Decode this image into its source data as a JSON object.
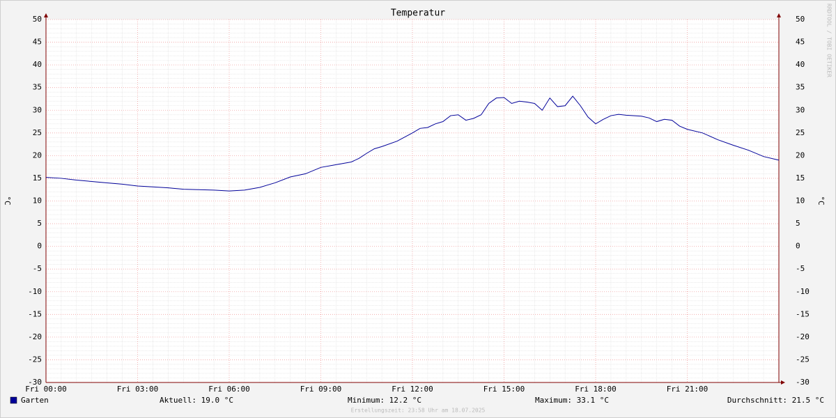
{
  "chart_data": {
    "type": "line",
    "title": "Temperatur",
    "y_label": "°C",
    "x": [
      0,
      0.5,
      1,
      1.5,
      2,
      2.5,
      3,
      3.5,
      4,
      4.5,
      5,
      5.5,
      6,
      6.5,
      7,
      7.5,
      8,
      8.5,
      9,
      9.5,
      10,
      10.25,
      10.5,
      10.75,
      11,
      11.5,
      12,
      12.25,
      12.5,
      12.75,
      13,
      13.25,
      13.5,
      13.75,
      14,
      14.25,
      14.5,
      14.75,
      15,
      15.25,
      15.5,
      15.75,
      16,
      16.25,
      16.5,
      16.75,
      17,
      17.25,
      17.5,
      17.75,
      18,
      18.25,
      18.5,
      18.75,
      19,
      19.5,
      19.75,
      20,
      20.25,
      20.5,
      20.75,
      21,
      21.5,
      22,
      22.5,
      23,
      23.5,
      24
    ],
    "series": [
      {
        "name": "Garten",
        "color": "#000099",
        "values": [
          15.2,
          15.0,
          14.6,
          14.3,
          14.0,
          13.7,
          13.3,
          13.1,
          12.9,
          12.6,
          12.5,
          12.4,
          12.2,
          12.4,
          13.0,
          14.0,
          15.3,
          16.0,
          17.4,
          18.0,
          18.6,
          19.4,
          20.5,
          21.5,
          22.0,
          23.2,
          25.0,
          26.0,
          26.2,
          27.0,
          27.5,
          28.8,
          29.0,
          27.8,
          28.2,
          29.0,
          31.5,
          32.7,
          32.8,
          31.5,
          32.0,
          31.8,
          31.5,
          30.0,
          32.7,
          30.8,
          31.0,
          33.1,
          31.0,
          28.5,
          27.0,
          28.0,
          28.8,
          29.1,
          28.9,
          28.7,
          28.3,
          27.5,
          28.0,
          27.8,
          26.5,
          25.8,
          25.0,
          23.5,
          22.3,
          21.2,
          19.8,
          19.0
        ]
      }
    ],
    "xlim": [
      0,
      24
    ],
    "xticks": [
      {
        "value": 0,
        "label": "Fri 00:00"
      },
      {
        "value": 3,
        "label": "Fri 03:00"
      },
      {
        "value": 6,
        "label": "Fri 06:00"
      },
      {
        "value": 9,
        "label": "Fri 09:00"
      },
      {
        "value": 12,
        "label": "Fri 12:00"
      },
      {
        "value": 15,
        "label": "Fri 15:00"
      },
      {
        "value": 18,
        "label": "Fri 18:00"
      },
      {
        "value": 21,
        "label": "Fri 21:00"
      }
    ],
    "ylim": [
      -30,
      50
    ],
    "yticks": [
      -30,
      -25,
      -20,
      -15,
      -10,
      -5,
      0,
      5,
      10,
      15,
      20,
      25,
      30,
      35,
      40,
      45,
      50
    ],
    "grid": true,
    "stats": [
      "Aktuell: 19.0 °C",
      "Minimum: 12.2 °C",
      "Maximum: 33.1 °C",
      "Durchschnitt: 21.5 °C"
    ],
    "footer": "Erstellungszeit: 23:58 Uhr am 18.07.2025",
    "watermark": "RRDTOOL / TOBI OETIKER"
  }
}
